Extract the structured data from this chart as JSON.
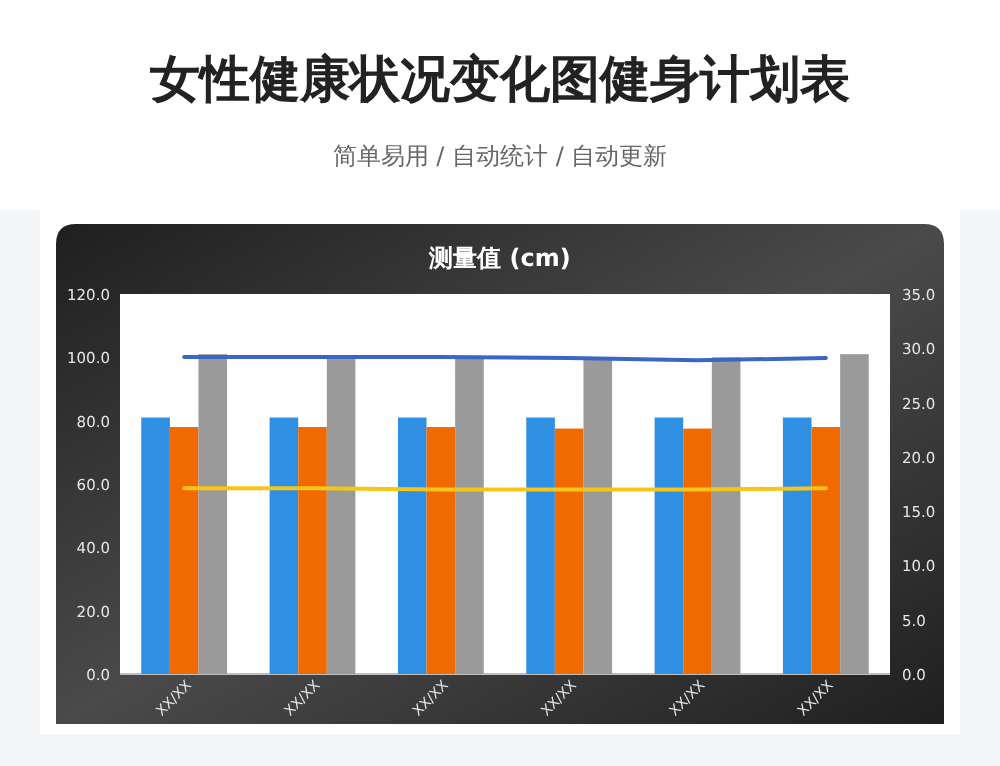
{
  "chart_data": {
    "type": "bar",
    "title": "女性健康状况变化图健身计划表",
    "subtitle": "简单易用 / 自动统计 / 自动更新",
    "annotations": [
      "测量值 (cm)"
    ],
    "categories": [
      "XX/XX",
      "XX/XX",
      "XX/XX",
      "XX/XX",
      "XX/XX",
      "XX/XX"
    ],
    "ylim": [
      0,
      120
    ],
    "yticks": [
      {
        "value": 0,
        "label": "0.0"
      },
      {
        "value": 20,
        "label": "20.0"
      },
      {
        "value": 40,
        "label": "40.0"
      },
      {
        "value": 60,
        "label": "60.0"
      },
      {
        "value": 80,
        "label": "80.0"
      },
      {
        "value": 100,
        "label": "100.0"
      },
      {
        "value": 120,
        "label": "120.0"
      }
    ],
    "y2lim": [
      0,
      35
    ],
    "y2ticks": [
      {
        "value": 0,
        "label": "0.0"
      },
      {
        "value": 5,
        "label": "5.0"
      },
      {
        "value": 10,
        "label": "10.0"
      },
      {
        "value": 15,
        "label": "15.0"
      },
      {
        "value": 20,
        "label": "20.0"
      },
      {
        "value": 25,
        "label": "25.0"
      },
      {
        "value": 30,
        "label": "30.0"
      },
      {
        "value": 35,
        "label": "35.0"
      }
    ],
    "series": [
      {
        "color": "#2f8fe3",
        "values": [
          81,
          81,
          81,
          81,
          81,
          81
        ]
      },
      {
        "color": "#f06a00",
        "values": [
          78,
          78,
          78,
          77.5,
          77.5,
          78
        ]
      },
      {
        "color": "#9a9a9a",
        "values": [
          101,
          100,
          100,
          100,
          100,
          101
        ]
      },
      {
        "type": "line",
        "axis": "y2",
        "color": "#3a66c4",
        "values": [
          29.2,
          29.2,
          29.2,
          29.1,
          28.9,
          29.1
        ]
      },
      {
        "type": "line",
        "axis": "y2",
        "color": "#f5c518",
        "values": [
          17.1,
          17.1,
          17.0,
          17.0,
          17.0,
          17.1
        ]
      }
    ]
  }
}
